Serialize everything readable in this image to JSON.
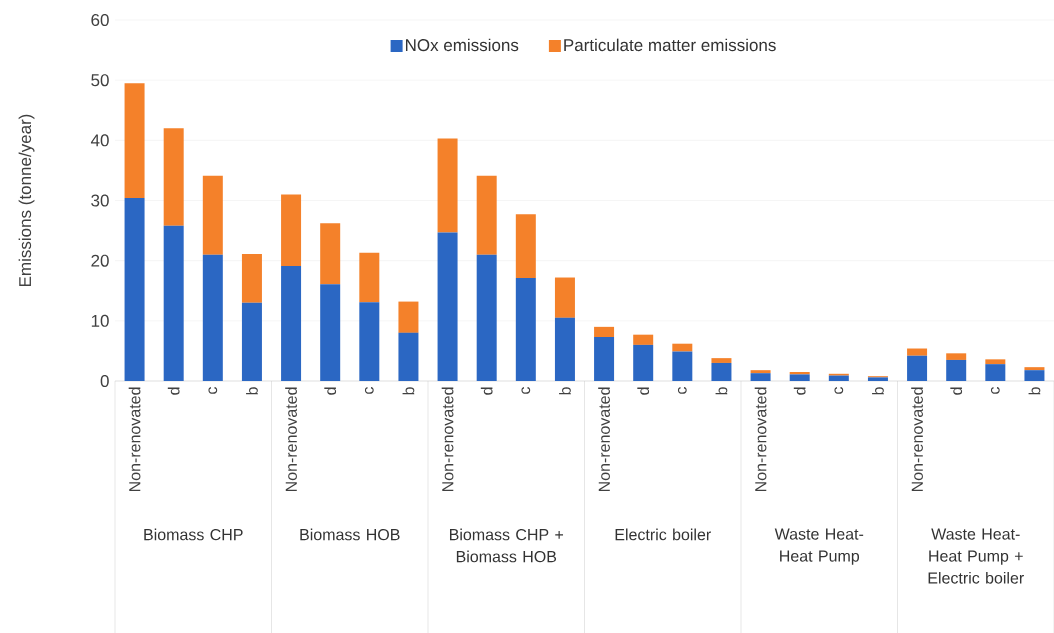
{
  "chart_data": {
    "type": "bar",
    "stacked": true,
    "ylabel": "Emissions (tonne/year)",
    "categories": [
      "Non-renovated",
      "d",
      "c",
      "b",
      "Non-renovated",
      "d",
      "c",
      "b",
      "Non-renovated",
      "d",
      "c",
      "b",
      "Non-renovated",
      "d",
      "c",
      "b",
      "Non-renovated",
      "d",
      "c",
      "b",
      "Non-renovated",
      "d",
      "c",
      "b"
    ],
    "series": [
      {
        "name": "NOx emissions",
        "color": "#2b67c3",
        "values": [
          30.4,
          25.8,
          21.0,
          13.0,
          19.1,
          16.1,
          13.1,
          8.0,
          24.7,
          21.0,
          17.1,
          10.5,
          7.3,
          6.0,
          4.9,
          3.0,
          1.3,
          1.1,
          0.9,
          0.6,
          4.2,
          3.5,
          2.8,
          1.8
        ]
      },
      {
        "name": "Particulate matter emissions",
        "color": "#f4812a",
        "values": [
          19.1,
          16.2,
          13.1,
          8.1,
          11.9,
          10.1,
          8.2,
          5.2,
          15.6,
          13.1,
          10.6,
          6.7,
          1.7,
          1.7,
          1.3,
          0.8,
          0.5,
          0.4,
          0.3,
          0.2,
          1.2,
          1.1,
          0.8,
          0.5
        ]
      }
    ],
    "ylim": [
      0,
      60
    ],
    "yticks": [
      0,
      10,
      20,
      30,
      40,
      50,
      60
    ],
    "grid": "y",
    "legend": "top",
    "annotations": [
      "Biomass CHP",
      "Biomass HOB",
      "Biomass CHP + Biomass HOB",
      "Electric boiler",
      "Waste Heat-Heat Pump",
      "Waste Heat-Heat Pump + Electric boiler"
    ]
  }
}
